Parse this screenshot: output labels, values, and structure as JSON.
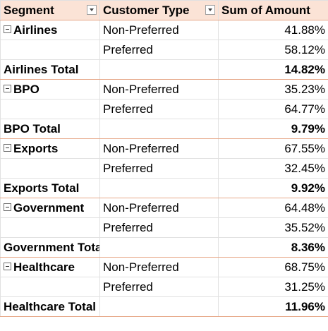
{
  "pivot": {
    "headers": {
      "segment": "Segment",
      "customer_type": "Customer Type",
      "amount": "Sum of Amount"
    },
    "segments": [
      {
        "name": "Airlines",
        "rows": [
          {
            "type": "Non-Preferred",
            "amount": "41.88%"
          },
          {
            "type": "Preferred",
            "amount": "58.12%"
          }
        ],
        "total_label": "Airlines Total",
        "total": "14.82%"
      },
      {
        "name": "BPO",
        "rows": [
          {
            "type": "Non-Preferred",
            "amount": "35.23%"
          },
          {
            "type": "Preferred",
            "amount": "64.77%"
          }
        ],
        "total_label": "BPO Total",
        "total": "9.79%"
      },
      {
        "name": "Exports",
        "rows": [
          {
            "type": "Non-Preferred",
            "amount": "67.55%"
          },
          {
            "type": "Preferred",
            "amount": "32.45%"
          }
        ],
        "total_label": "Exports Total",
        "total": "9.92%"
      },
      {
        "name": "Government",
        "rows": [
          {
            "type": "Non-Preferred",
            "amount": "64.48%"
          },
          {
            "type": "Preferred",
            "amount": "35.52%"
          }
        ],
        "total_label": "Government Total",
        "total": "8.36%"
      },
      {
        "name": "Healthcare",
        "rows": [
          {
            "type": "Non-Preferred",
            "amount": "68.75%"
          },
          {
            "type": "Preferred",
            "amount": "31.25%"
          }
        ],
        "total_label": "Healthcare Total",
        "total": "11.96%"
      }
    ]
  }
}
